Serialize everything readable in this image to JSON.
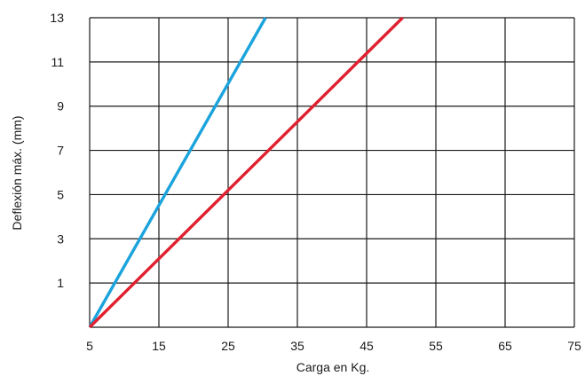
{
  "chart_data": {
    "type": "line",
    "title": "",
    "xlabel": "Carga en Kg.",
    "ylabel": "Deflexión máx. (mm)",
    "xlim": [
      5,
      75
    ],
    "ylim": [
      -1,
      13
    ],
    "x_ticks": [
      5,
      15,
      25,
      35,
      45,
      55,
      65,
      75
    ],
    "y_ticks": [
      1,
      3,
      5,
      7,
      9,
      11,
      13
    ],
    "grid": true,
    "legend": "none",
    "series": [
      {
        "color": "#1aa3dc",
        "points": [
          [
            5,
            -1
          ],
          [
            30.4,
            13
          ]
        ]
      },
      {
        "color": "#e0202e",
        "points": [
          [
            5,
            -1
          ],
          [
            50.2,
            13
          ]
        ]
      }
    ]
  }
}
